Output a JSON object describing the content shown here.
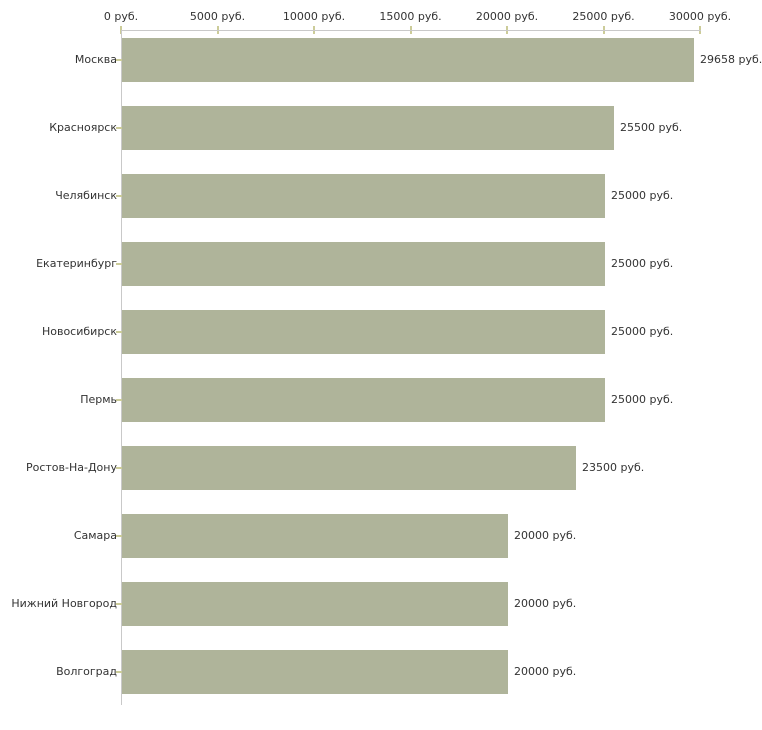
{
  "chart_data": {
    "type": "bar",
    "orientation": "horizontal",
    "title": "",
    "xlabel": "",
    "ylabel": "",
    "categories": [
      "Москва",
      "Красноярск",
      "Челябинск",
      "Екатеринбург",
      "Новосибирск",
      "Пермь",
      "Ростов-На-Дону",
      "Самара",
      "Нижний Новгород",
      "Волгоград"
    ],
    "values": [
      29658,
      25500,
      25000,
      25000,
      25000,
      25000,
      23500,
      20000,
      20000,
      20000
    ],
    "value_labels": [
      "29658 руб.",
      "25500 руб.",
      "25000 руб.",
      "25000 руб.",
      "25000 руб.",
      "25000 руб.",
      "23500 руб.",
      "20000 руб.",
      "20000 руб.",
      "20000 руб."
    ],
    "xlim": [
      0,
      30000
    ],
    "x_ticks": [
      0,
      5000,
      10000,
      15000,
      20000,
      25000,
      30000
    ],
    "x_tick_labels": [
      "0 руб.",
      "5000 руб.",
      "10000 руб.",
      "15000 руб.",
      "20000 руб.",
      "25000 руб.",
      "30000 руб."
    ],
    "grid": false,
    "legend": false,
    "axis_position": "top"
  },
  "style": {
    "bar_color": "#afb49a",
    "axis_line_color": "#c9c9c9",
    "tick_color": "#cccc99",
    "text_color": "#333333",
    "background_color": "#ffffff"
  }
}
